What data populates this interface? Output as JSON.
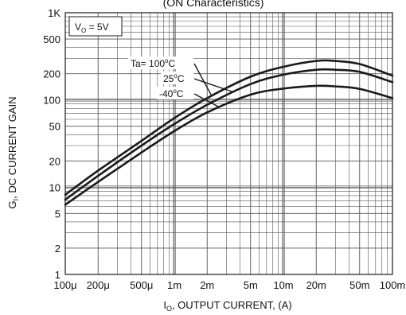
{
  "chart_data": {
    "type": "line",
    "title": "(ON Characteristics)",
    "xlabel_main": "I",
    "xlabel_sub": "O",
    "xlabel_rest": ", OUTPUT CURRENT, (A)",
    "ylabel_main": "G",
    "ylabel_sub": "I",
    "ylabel_rest": ", DC CURRENT GAIN",
    "x_scale": "log",
    "y_scale": "log",
    "xlim": [
      0.0001,
      0.1
    ],
    "ylim": [
      1,
      1000
    ],
    "grid": true,
    "x_ticks": [
      {
        "value": 0.0001,
        "label": "100μ"
      },
      {
        "value": 0.0002,
        "label": "200μ"
      },
      {
        "value": 0.0005,
        "label": "500μ"
      },
      {
        "value": 0.001,
        "label": "1m"
      },
      {
        "value": 0.002,
        "label": "2m"
      },
      {
        "value": 0.005,
        "label": "5m"
      },
      {
        "value": 0.01,
        "label": "10m"
      },
      {
        "value": 0.02,
        "label": "20m"
      },
      {
        "value": 0.05,
        "label": "50m"
      },
      {
        "value": 0.1,
        "label": "100m"
      }
    ],
    "y_ticks": [
      {
        "value": 1,
        "label": "1"
      },
      {
        "value": 2,
        "label": "2"
      },
      {
        "value": 5,
        "label": "5"
      },
      {
        "value": 10,
        "label": "10"
      },
      {
        "value": 20,
        "label": "20"
      },
      {
        "value": 50,
        "label": "50"
      },
      {
        "value": 100,
        "label": "100"
      },
      {
        "value": 200,
        "label": "200"
      },
      {
        "value": 500,
        "label": "500"
      },
      {
        "value": 1000,
        "label": "1K"
      }
    ],
    "condition_box": {
      "main": "V",
      "sub": "O",
      "rest": " = 5V"
    },
    "series": [
      {
        "name": "Ta= 100°C",
        "label_main": "Ta= 100",
        "label_deg": "o",
        "label_unit": "C",
        "x": [
          0.0001,
          0.0002,
          0.0005,
          0.001,
          0.002,
          0.005,
          0.01,
          0.02,
          0.03,
          0.05,
          0.1
        ],
        "y": [
          8.2,
          15.5,
          34,
          62,
          105,
          185,
          240,
          280,
          280,
          258,
          190
        ]
      },
      {
        "name": "25°C",
        "label_main": "25",
        "label_deg": "o",
        "label_unit": "C",
        "x": [
          0.0001,
          0.0002,
          0.0005,
          0.001,
          0.002,
          0.005,
          0.01,
          0.02,
          0.03,
          0.05,
          0.1
        ],
        "y": [
          7.2,
          13.5,
          30,
          53,
          88,
          152,
          195,
          222,
          222,
          210,
          160
        ]
      },
      {
        "name": "-40°C",
        "label_main": "-40",
        "label_deg": "o",
        "label_unit": "C",
        "x": [
          0.0001,
          0.0002,
          0.0005,
          0.001,
          0.002,
          0.005,
          0.01,
          0.02,
          0.03,
          0.05,
          0.1
        ],
        "y": [
          6.3,
          11.5,
          25,
          44,
          72,
          115,
          135,
          145,
          143,
          134,
          105
        ]
      }
    ],
    "colors": {
      "line": "#1a1a1a",
      "grid": "#555555",
      "background": "#ffffff"
    }
  }
}
